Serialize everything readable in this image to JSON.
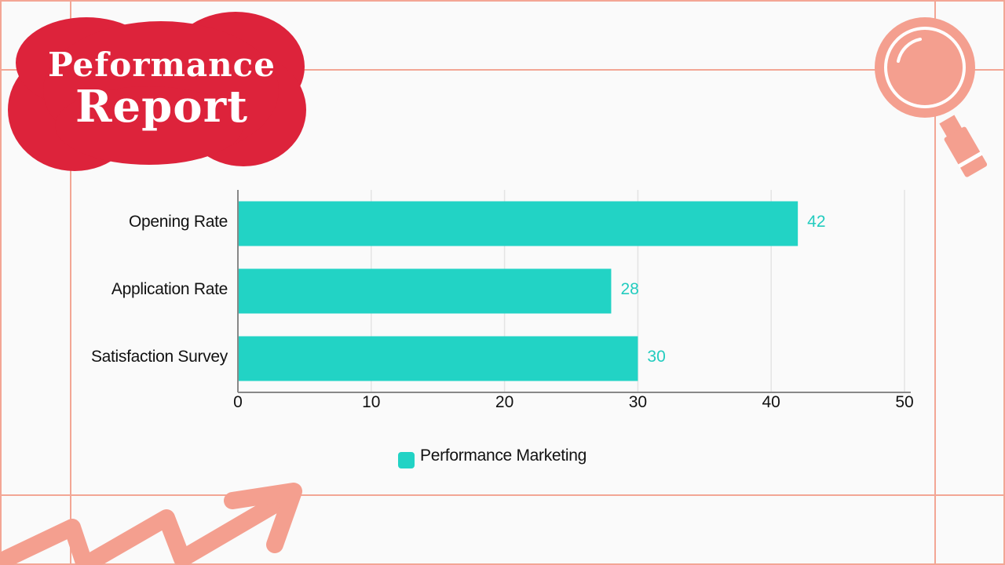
{
  "header": {
    "title_line_1": "Peformance",
    "title_line_2": "Report"
  },
  "colors": {
    "background": "#fafafa",
    "frame_lines": "#f3a695",
    "title_blob": "#dd233b",
    "title_text": "#ffffff",
    "bar": "#22d3c5",
    "value_label": "#22ccbf",
    "decor": "#f49f8f"
  },
  "decorations": {
    "top_right_icon": "magnifier-icon",
    "bottom_left_icon": "zigzag-arrow-icon"
  },
  "chart_data": {
    "type": "bar",
    "orientation": "horizontal",
    "title": "",
    "xlabel": "",
    "ylabel": "",
    "categories": [
      "Opening Rate",
      "Application Rate",
      "Satisfaction Survey"
    ],
    "series": [
      {
        "name": "Performance Marketing",
        "values": [
          42,
          28,
          30
        ],
        "color": "#22d3c5"
      }
    ],
    "xlim": [
      0,
      50
    ],
    "xticks": [
      "0",
      "10",
      "20",
      "30",
      "40",
      "50"
    ],
    "grid": true,
    "data_labels": true,
    "legend": {
      "position": "bottom-center",
      "entries": [
        "Performance Marketing"
      ]
    }
  }
}
